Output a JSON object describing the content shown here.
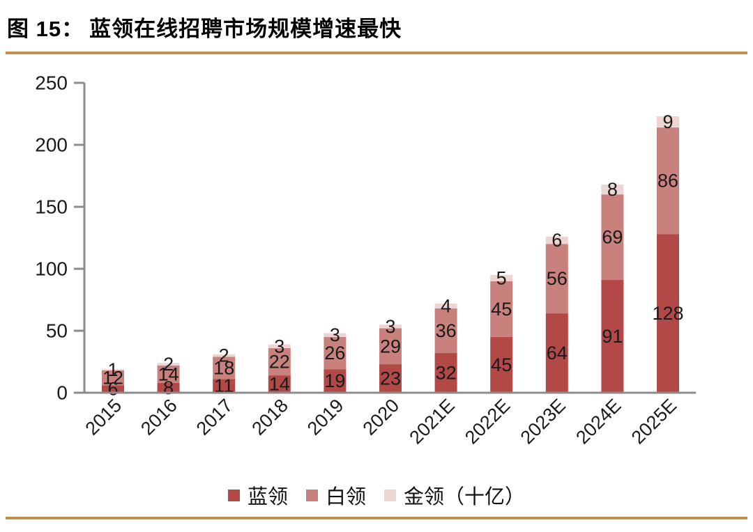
{
  "page": {
    "title_prefix": "图 15：",
    "title_text": "蓝领在线招聘市场规模增速最快"
  },
  "chart_data": {
    "type": "bar",
    "stacked": true,
    "title": "蓝领在线招聘市场规模增速最快",
    "unit": "十亿",
    "categories": [
      "2015",
      "2016",
      "2017",
      "2018",
      "2019",
      "2020",
      "2021E",
      "2022E",
      "2023E",
      "2024E",
      "2025E"
    ],
    "series": [
      {
        "name": "蓝领",
        "legend_label": "蓝领",
        "color": "#b24947",
        "values": [
          6,
          8,
          11,
          14,
          19,
          23,
          32,
          45,
          64,
          91,
          128
        ]
      },
      {
        "name": "白领",
        "legend_label": "白领",
        "color": "#c8817d",
        "values": [
          12,
          14,
          18,
          22,
          26,
          29,
          36,
          45,
          56,
          69,
          86
        ]
      },
      {
        "name": "金领",
        "legend_label": "金领（十亿）",
        "color": "#ecd5d3",
        "values": [
          1,
          2,
          2,
          3,
          3,
          3,
          4,
          5,
          6,
          8,
          9
        ]
      }
    ],
    "ylim": [
      0,
      250
    ],
    "yticks": [
      0,
      50,
      100,
      150,
      200,
      250
    ],
    "legend_position": "bottom",
    "grid": false,
    "axis_color": "#8c8c8c",
    "label_color": "#1a1a1a"
  },
  "decor": {
    "rule_color": "#c0924f"
  }
}
